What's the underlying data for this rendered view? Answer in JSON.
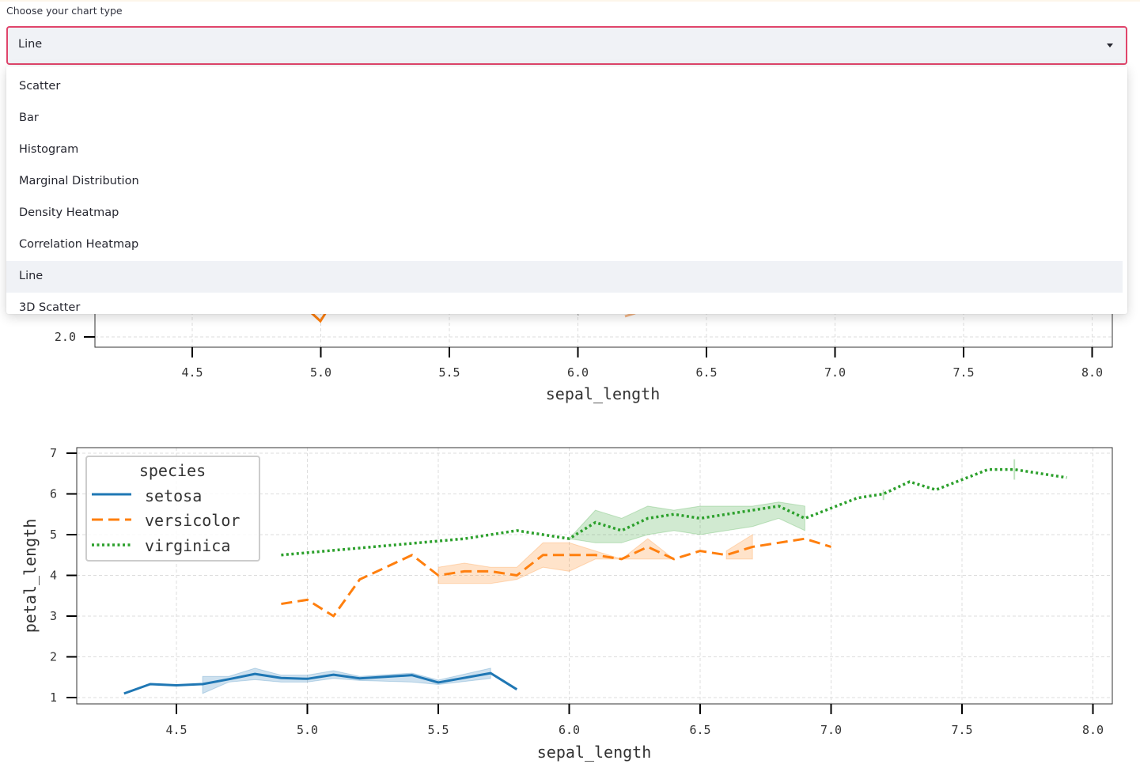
{
  "select": {
    "label": "Choose your chart type",
    "value": "Line",
    "options": [
      "Scatter",
      "Bar",
      "Histogram",
      "Marginal Distribution",
      "Density Heatmap",
      "Correlation Heatmap",
      "Line",
      "3D Scatter"
    ],
    "active_index": 6
  },
  "colors": {
    "accent_border": "#e0456b",
    "setosa": "#1f77b4",
    "versicolor": "#ff7f0e",
    "virginica": "#2ca02c"
  },
  "chart_data": [
    {
      "type": "line",
      "partially_hidden_by": "dropdown",
      "xlabel": "sepal_length",
      "x_ticks": [
        "4.5",
        "5.0",
        "5.5",
        "6.0",
        "6.5",
        "7.0",
        "7.5",
        "8.0"
      ],
      "y_ticks_visible": [
        "2.0"
      ],
      "xlim": [
        4.2,
        8.1
      ]
    },
    {
      "type": "line",
      "xlabel": "sepal_length",
      "ylabel": "petal_length",
      "xlim": [
        4.2,
        8.1
      ],
      "ylim": [
        0.8,
        7.0
      ],
      "x_ticks": [
        "4.5",
        "5.0",
        "5.5",
        "6.0",
        "6.5",
        "7.0",
        "7.5",
        "8.0"
      ],
      "y_ticks": [
        "1",
        "2",
        "3",
        "4",
        "5",
        "6",
        "7"
      ],
      "grid": true,
      "legend": {
        "title": "species",
        "placement": "top-left"
      },
      "series": [
        {
          "name": "setosa",
          "color": "#1f77b4",
          "dash": "solid",
          "x": [
            4.3,
            4.4,
            4.5,
            4.6,
            4.7,
            4.8,
            4.9,
            5.0,
            5.1,
            5.2,
            5.4,
            5.5,
            5.7,
            5.8
          ],
          "y": [
            1.1,
            1.33,
            1.3,
            1.33,
            1.45,
            1.58,
            1.48,
            1.46,
            1.56,
            1.47,
            1.55,
            1.37,
            1.6,
            1.2
          ],
          "band_lower": [
            null,
            null,
            null,
            1.1,
            1.38,
            1.44,
            1.38,
            1.38,
            1.47,
            1.42,
            1.38,
            1.32,
            1.47,
            null
          ],
          "band_upper": [
            null,
            null,
            null,
            1.52,
            1.52,
            1.72,
            1.55,
            1.55,
            1.66,
            1.52,
            1.6,
            1.43,
            1.72,
            null
          ]
        },
        {
          "name": "versicolor",
          "color": "#ff7f0e",
          "dash": "dashed",
          "x": [
            4.9,
            5.0,
            5.1,
            5.2,
            5.4,
            5.5,
            5.6,
            5.7,
            5.8,
            5.9,
            6.0,
            6.1,
            6.2,
            6.3,
            6.4,
            6.5,
            6.6,
            6.7,
            6.8,
            6.9,
            7.0
          ],
          "y": [
            3.3,
            3.4,
            3.0,
            3.9,
            4.5,
            4.0,
            4.1,
            4.1,
            4.0,
            4.5,
            4.5,
            4.5,
            4.4,
            4.7,
            4.4,
            4.6,
            4.5,
            4.7,
            4.8,
            4.9,
            4.7
          ],
          "band_lower": [
            null,
            null,
            null,
            null,
            null,
            3.8,
            3.8,
            3.8,
            3.9,
            4.2,
            4.1,
            4.4,
            4.4,
            4.4,
            4.4,
            null,
            4.4,
            4.4,
            null,
            null,
            null
          ],
          "band_upper": [
            null,
            null,
            null,
            null,
            null,
            4.2,
            4.3,
            4.2,
            4.2,
            4.8,
            4.8,
            4.6,
            4.4,
            4.9,
            4.4,
            null,
            4.6,
            5.0,
            null,
            null,
            null
          ]
        },
        {
          "name": "virginica",
          "color": "#2ca02c",
          "dash": "dotted",
          "x": [
            4.9,
            5.6,
            5.8,
            6.0,
            6.1,
            6.2,
            6.3,
            6.4,
            6.5,
            6.7,
            6.8,
            6.9,
            7.1,
            7.2,
            7.3,
            7.4,
            7.6,
            7.7,
            7.9
          ],
          "y": [
            4.5,
            4.9,
            5.1,
            4.9,
            5.3,
            5.1,
            5.4,
            5.5,
            5.4,
            5.6,
            5.7,
            5.4,
            5.9,
            6.0,
            6.3,
            6.1,
            6.6,
            6.6,
            6.4
          ],
          "band_lower": [
            null,
            null,
            null,
            4.9,
            4.8,
            4.8,
            5.0,
            5.1,
            5.0,
            5.2,
            5.4,
            5.1,
            null,
            null,
            null,
            null,
            null,
            null,
            null
          ],
          "band_upper": [
            null,
            null,
            null,
            4.9,
            5.6,
            5.4,
            5.7,
            5.6,
            5.7,
            5.7,
            5.8,
            5.7,
            null,
            null,
            null,
            null,
            null,
            null,
            null
          ]
        }
      ]
    }
  ]
}
